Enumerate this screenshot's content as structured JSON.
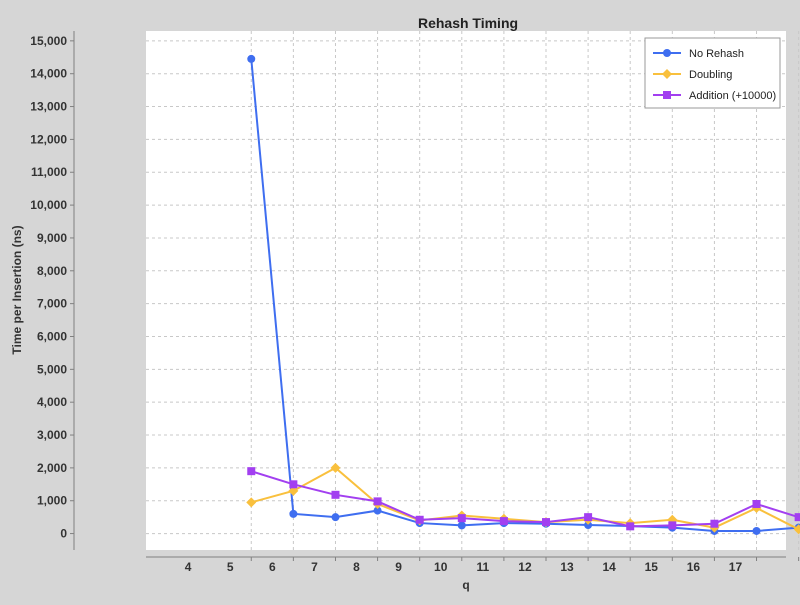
{
  "chart_data": {
    "type": "line",
    "title": "Rehash Timing",
    "xlabel": "q",
    "ylabel": "Time per Insertion (ns)",
    "ylim": [
      -500,
      15300
    ],
    "yticks": [
      0,
      1000,
      2000,
      3000,
      4000,
      5000,
      6000,
      7000,
      8000,
      9000,
      10000,
      11000,
      12000,
      13000,
      14000,
      15000
    ],
    "ytick_labels": [
      "0",
      "1,000",
      "2,000",
      "3,000",
      "4,000",
      "5,000",
      "6,000",
      "7,000",
      "8,000",
      "9,000",
      "10,000",
      "11,000",
      "12,000",
      "13,000",
      "14,000",
      "15,000"
    ],
    "xticks": [
      4,
      5,
      6,
      7,
      8,
      9,
      10,
      11,
      12,
      13,
      14,
      15,
      16,
      17
    ],
    "xlim": [
      3,
      18.2
    ],
    "x": [
      5.5,
      6.5,
      7.5,
      8.5,
      9.5,
      10.5,
      11.5,
      12.5,
      13.5,
      14.5,
      15.5,
      16.5,
      17.5,
      18.5
    ],
    "grid": true,
    "legend_position": "top-right",
    "series": [
      {
        "name": "No Rehash",
        "color": "#3f6ef0",
        "marker": "circle",
        "values": [
          14450,
          600,
          500,
          700,
          320,
          250,
          320,
          300,
          260,
          230,
          180,
          80,
          80,
          180
        ]
      },
      {
        "name": "Doubling",
        "color": "#f9c03d",
        "marker": "diamond",
        "values": [
          950,
          1300,
          2000,
          900,
          400,
          550,
          450,
          350,
          420,
          320,
          420,
          180,
          780,
          130
        ]
      },
      {
        "name": "Addition (+10000)",
        "color": "#a23ff0",
        "marker": "square",
        "values": [
          1900,
          1500,
          1180,
          980,
          420,
          470,
          380,
          350,
          500,
          220,
          250,
          300,
          900,
          500
        ]
      }
    ]
  }
}
